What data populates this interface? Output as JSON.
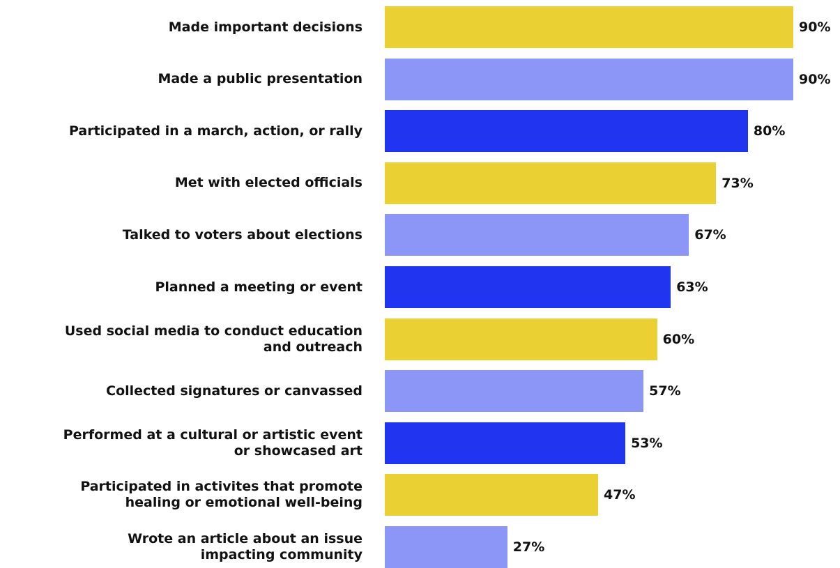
{
  "chart_data": {
    "type": "bar",
    "orientation": "horizontal",
    "title": "",
    "xlabel": "",
    "ylabel": "",
    "xlim": [
      0,
      90
    ],
    "grid": false,
    "legend": "none",
    "categories": [
      "Made important decisions",
      "Made a public presentation",
      "Participated in a march, action, or rally",
      "Met with elected officials",
      "Talked to voters about elections",
      "Planned a meeting or event",
      "Used social media to conduct education\nand outreach",
      "Collected signatures or canvassed",
      "Performed at a cultural or artistic event\nor showcased art",
      "Participated in activites that promote\nhealing or emotional well-being",
      "Wrote an article about an issue\nimpacting community"
    ],
    "values": [
      90,
      90,
      80,
      73,
      67,
      63,
      60,
      57,
      53,
      47,
      27
    ],
    "value_labels": [
      "90%",
      "90%",
      "80%",
      "73%",
      "67%",
      "63%",
      "60%",
      "57%",
      "53%",
      "47%",
      "27%"
    ],
    "colors": [
      "#EBD033",
      "#8B96F6",
      "#2134F0",
      "#EBD033",
      "#8B96F6",
      "#2134F0",
      "#EBD033",
      "#8B96F6",
      "#2134F0",
      "#EBD033",
      "#8B96F6"
    ]
  }
}
